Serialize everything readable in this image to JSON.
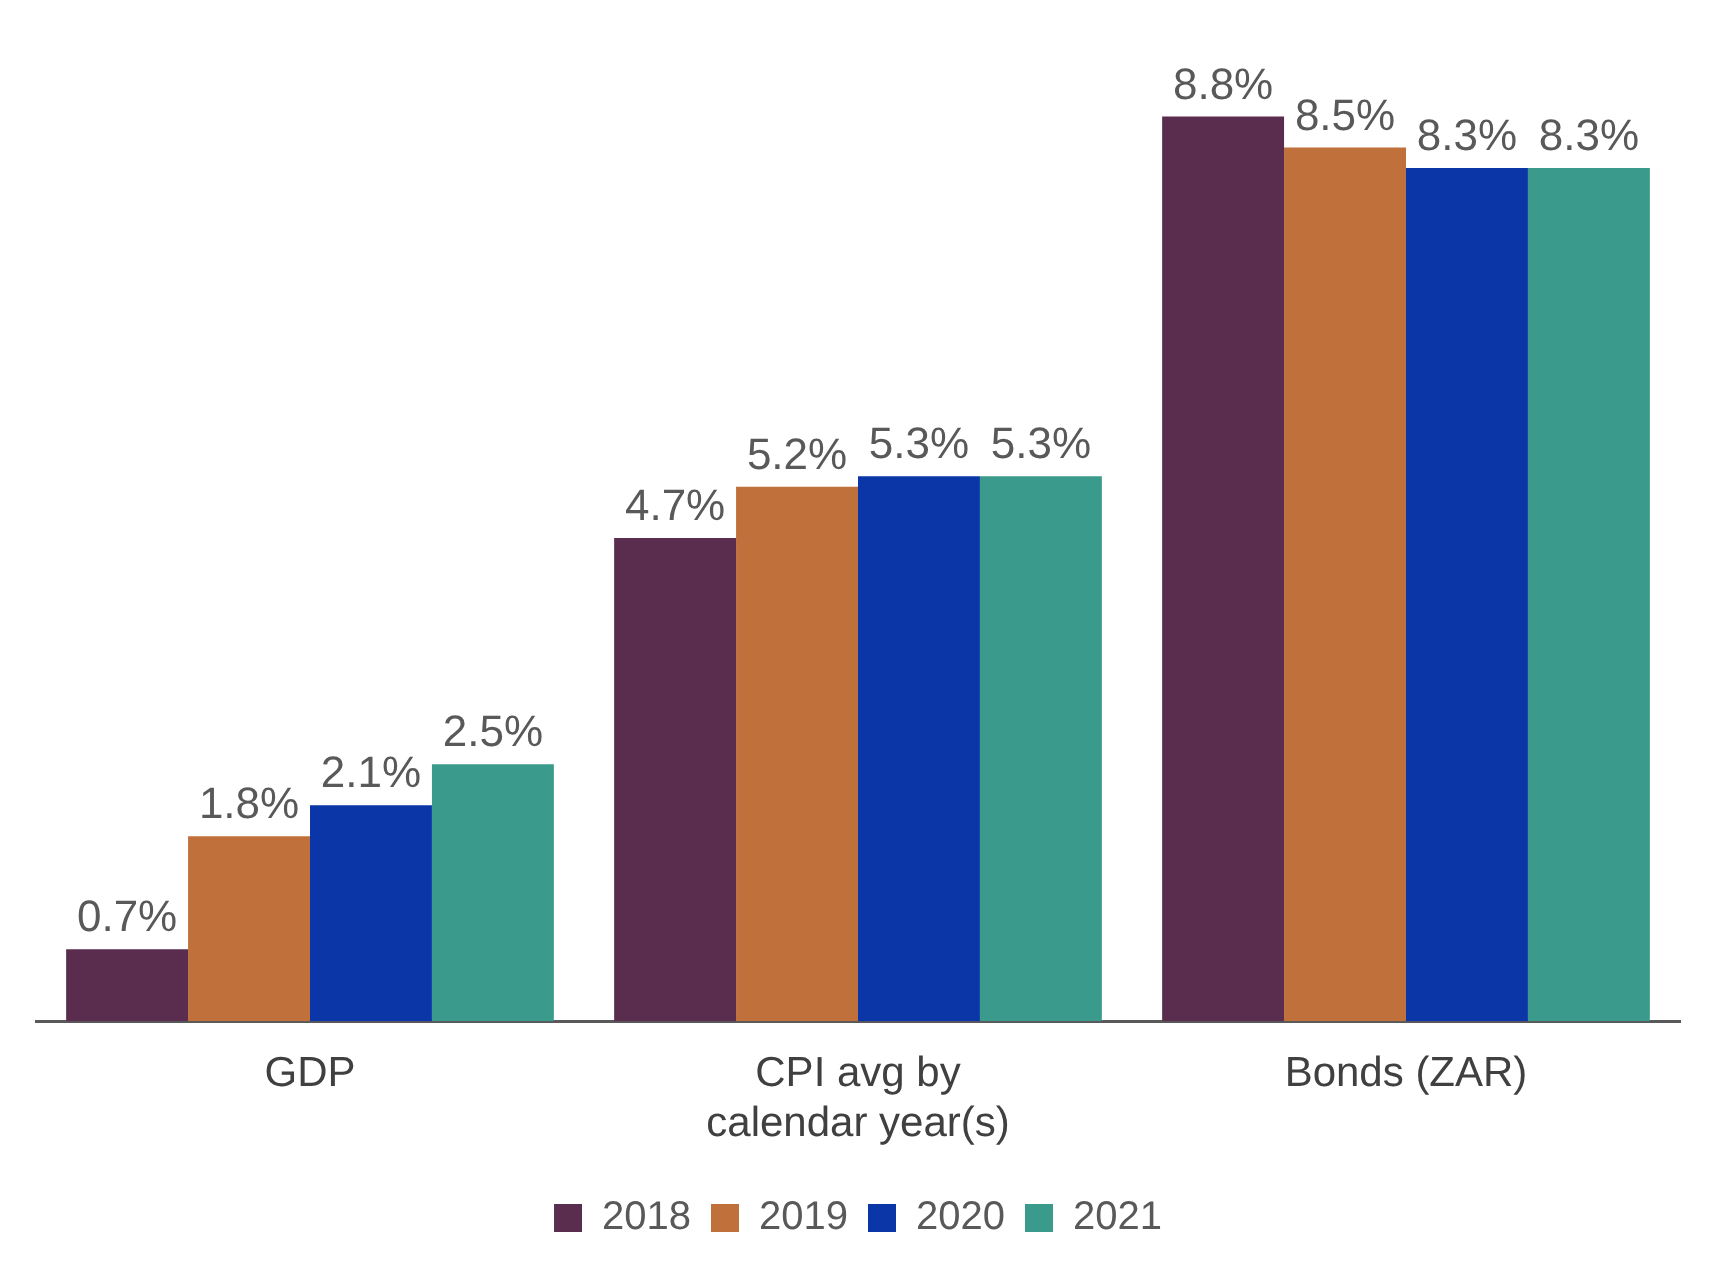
{
  "chart_data": {
    "type": "bar",
    "categories": [
      "GDP",
      "CPI avg by calendar year(s)",
      "Bonds (ZAR)"
    ],
    "series": [
      {
        "name": "2018",
        "color": "#5a2d4f",
        "values": [
          0.7,
          4.7,
          8.8
        ],
        "value_labels": [
          "0.7%",
          "4.7%",
          "8.8%"
        ]
      },
      {
        "name": "2019",
        "color": "#c0703a",
        "values": [
          1.8,
          5.2,
          8.5
        ],
        "value_labels": [
          "1.8%",
          "5.2%",
          "8.5%"
        ]
      },
      {
        "name": "2020",
        "color": "#0a36a8",
        "values": [
          2.1,
          5.3,
          8.3
        ],
        "value_labels": [
          "2.1%",
          "5.3%",
          "8.3%"
        ]
      },
      {
        "name": "2021",
        "color": "#3a9a8c",
        "values": [
          2.5,
          5.3,
          8.3
        ],
        "value_labels": [
          "2.5%",
          "5.3%",
          "8.3%"
        ]
      }
    ],
    "grid": false,
    "legend": "bottom"
  }
}
